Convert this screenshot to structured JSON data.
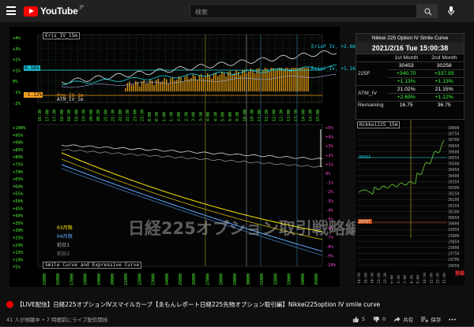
{
  "header": {
    "logo_text": "YouTube",
    "logo_region": "JP",
    "search_placeholder": "検索"
  },
  "video": {
    "eris_panel": {
      "title": "Eris_IV_15m",
      "y_ticks": [
        "+4%",
        "+3%",
        "+2%",
        "+1%",
        "0%",
        "-1%",
        "-2%"
      ],
      "eris_c_iv": "ErisC_IV, +1.16%",
      "eris_p_iv": "ErisP_IV, +2.98%",
      "atm_label": "ATM_IV_1m",
      "pre_label": "Pre_IV_1m",
      "cyan_marker": "0.16%",
      "orange_marker": "-1.12%",
      "x_ticks": [
        "16:30",
        "17:00",
        "17:30",
        "18:00",
        "18:30",
        "19:00",
        "19:30",
        "20:00",
        "20:30",
        "21:00",
        "21:30",
        "22:00",
        "22:30",
        "23:00",
        "23:30",
        "0:00",
        "0:30",
        "1:00",
        "1:30",
        "2:00",
        "2:30",
        "3:00",
        "3:30",
        "4:00",
        "4:30",
        "5:00",
        "9:00",
        "9:30",
        "10:00",
        "10:30",
        "11:00",
        "11:30",
        "12:00",
        "12:30",
        "13:00",
        "13:30",
        "14:00",
        "14:30",
        "15:00"
      ]
    },
    "smile_panel": {
      "title": "Smile Curve and Expressive Curve",
      "watermark": "日経225オプション取引戦略編",
      "left_ticks": [
        "+100%",
        "+95%",
        "+90%",
        "+85%",
        "+80%",
        "+75%",
        "+70%",
        "+65%",
        "+60%",
        "+55%",
        "+50%",
        "+45%",
        "+40%",
        "+35%",
        "+30%",
        "+25%",
        "+20%",
        "+15%",
        "+10%",
        "+5%"
      ],
      "right_ticks": [
        "+5%",
        "+4%",
        "+3%",
        "+2%",
        "+1%",
        "0%",
        "-1%",
        "-2%",
        "-3%",
        "-4%",
        "-5%",
        "-6%",
        "-7%",
        "-8%",
        "-9%",
        "-10%"
      ],
      "legend": [
        "03月限",
        "04月限",
        "前日1",
        "前日2"
      ],
      "x_ticks": [
        "15000",
        "16000",
        "17000",
        "18000",
        "19000",
        "20000",
        "21000",
        "22000",
        "23000",
        "24000",
        "25000",
        "26000",
        "27000",
        "28000",
        "29000",
        "30000",
        "31000",
        "32000",
        "33000",
        "34000",
        "35000"
      ]
    },
    "table": {
      "title": "Nikkei 225 Option IV Smile Curve",
      "datetime": "2021/2/16 Tue 15:00:38",
      "col1": "1st Month",
      "col2": "2nd Month",
      "rows": [
        {
          "label": "225F",
          "v1": "30453",
          "v2": "30258"
        },
        {
          "label": "",
          "v1": "+340.70",
          "v2": "+337.93"
        },
        {
          "label": "",
          "v1": "+1.13%",
          "v2": "+1.13%"
        },
        {
          "label": "ATM_IV",
          "v1": "21.02%",
          "v2": "21.15%"
        },
        {
          "label": "",
          "v1": "+2.69%",
          "v2": "+1.12%"
        },
        {
          "label": "Remaining",
          "v1": "16.75",
          "v2": "36.75"
        }
      ]
    },
    "nikkei_panel": {
      "title": "Nikkei225_15m",
      "y_ticks": [
        "30800",
        "30750",
        "30700",
        "30650",
        "30600",
        "30550",
        "30500",
        "30450",
        "30400",
        "30350",
        "30300",
        "30250",
        "30200",
        "30150",
        "30100",
        "30050",
        "30000",
        "29950",
        "29900",
        "29850",
        "29800",
        "29750",
        "29700",
        "29650"
      ],
      "current": "30453",
      "ref_label": "29767",
      "x_ticks": [
        "16:30",
        "18:00",
        "19:30",
        "21:00",
        "22:30",
        "0:00",
        "1:30",
        "3:00",
        "4:30",
        "9:00",
        "10:30",
        "12:00",
        "13:30",
        "15:00"
      ],
      "live_badge": "登録"
    }
  },
  "below": {
    "title": "【LIVE配信】日経225オプションIVスマイルカーブ【ゑもんレポート日経225先物オプション取引編】Nikkei225option IV smile curve",
    "meta": "41 人が視聴中 • 7 時間前にライブ配信開始",
    "likes": "5",
    "dislikes": "0",
    "share": "共有",
    "save": "保存"
  },
  "colors": {
    "accent_red": "#ff0000",
    "cyan": "#19d7e6",
    "lime": "#56ff38",
    "orange": "#f59f1f",
    "yellow": "#ffe600"
  }
}
